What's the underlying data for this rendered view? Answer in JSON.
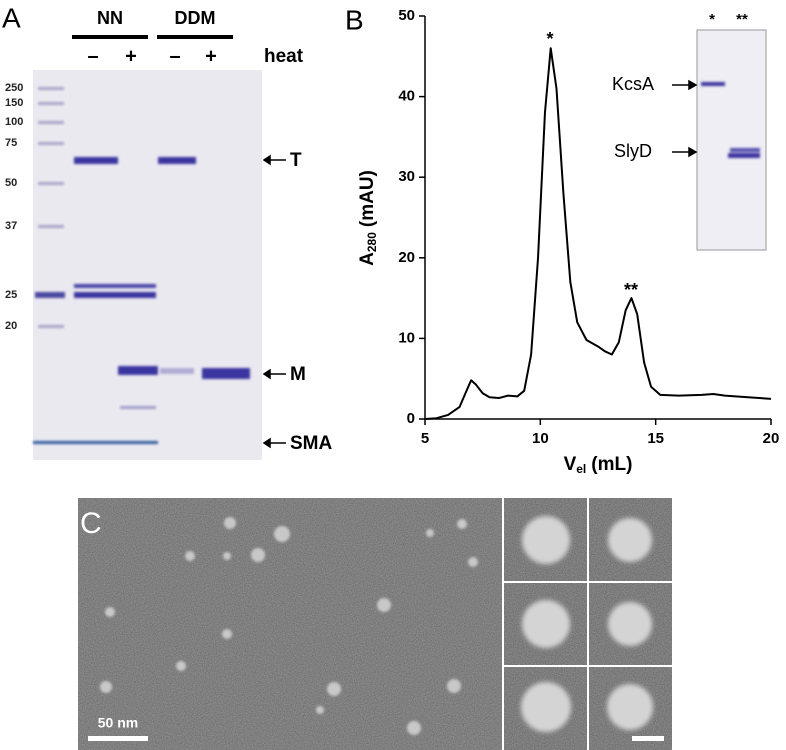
{
  "panel_a": {
    "label": "A",
    "groups": [
      "NN",
      "DDM"
    ],
    "lane_labels": [
      "–",
      "+",
      "–",
      "+"
    ],
    "heat_label": "heat",
    "markers": [
      "250",
      "150",
      "100",
      "75",
      "50",
      "37",
      "25",
      "20"
    ],
    "bands": [
      "T",
      "M",
      "SMA"
    ]
  },
  "chart_data": {
    "type": "line",
    "panel_label": "B",
    "x_label": {
      "main": "V",
      "sub": "el",
      "rest": "(mL)"
    },
    "y_label": {
      "main": "A",
      "sub": "280",
      "rest": "(mAU)"
    },
    "x": [
      5,
      5.5,
      6,
      6.5,
      6.8,
      7.0,
      7.2,
      7.5,
      7.8,
      8.2,
      8.6,
      9.0,
      9.3,
      9.6,
      9.9,
      10.2,
      10.45,
      10.7,
      11.0,
      11.3,
      11.6,
      12.0,
      12.5,
      12.8,
      13.1,
      13.4,
      13.7,
      13.95,
      14.2,
      14.5,
      14.8,
      15.2,
      16,
      17,
      17.5,
      18,
      19,
      20
    ],
    "values": [
      0,
      0.1,
      0.5,
      1.5,
      3.5,
      4.8,
      4.3,
      3.2,
      2.7,
      2.6,
      2.9,
      2.8,
      3.5,
      8,
      20,
      38,
      46,
      41,
      28,
      17,
      12,
      9.8,
      9,
      8.4,
      8,
      9.5,
      13.5,
      15,
      13,
      7,
      4,
      3.0,
      2.9,
      3.0,
      3.1,
      2.9,
      2.7,
      2.5
    ],
    "color": "#000000",
    "xlim": [
      5,
      20
    ],
    "ylim": [
      0,
      50
    ],
    "xticks": [
      5,
      10,
      15,
      20
    ],
    "yticks": [
      0,
      10,
      20,
      30,
      40,
      50
    ],
    "peak_labels": [
      "*",
      "**"
    ],
    "inset": {
      "lanes": [
        "*",
        "**"
      ],
      "bands": [
        "KcsA",
        "SlyD"
      ]
    }
  },
  "panel_c": {
    "label": "C",
    "scale_bar": "50 nm"
  }
}
